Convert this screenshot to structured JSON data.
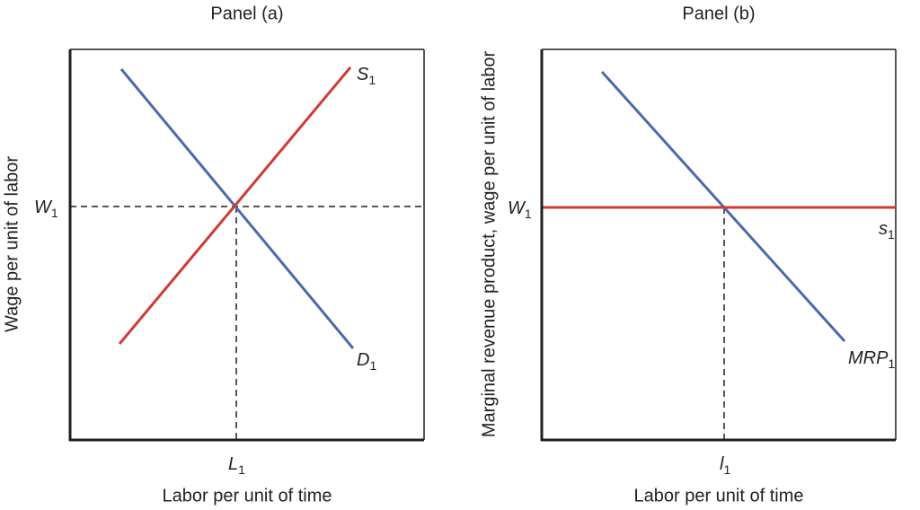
{
  "panels": [
    {
      "title": "Panel (a)",
      "x_label": "Labor per unit of time",
      "y_label": "Wage per unit of labor",
      "wage_label": {
        "main": "W",
        "sub": "1"
      },
      "quantity_label": {
        "main": "L",
        "sub": "1"
      },
      "supply_label": {
        "main": "S",
        "sub": "1"
      },
      "demand_label": {
        "main": "D",
        "sub": "1"
      }
    },
    {
      "title": "Panel (b)",
      "x_label": "Labor per unit of time",
      "y_label": "Marginal revenue product, wage per unit of labor",
      "wage_label": {
        "main": "W",
        "sub": "1"
      },
      "quantity_label": {
        "main": "l",
        "sub": "1"
      },
      "supply_label": {
        "main": "s",
        "sub": "1"
      },
      "demand_label": {
        "main": "MRP",
        "sub": "1"
      }
    }
  ]
}
